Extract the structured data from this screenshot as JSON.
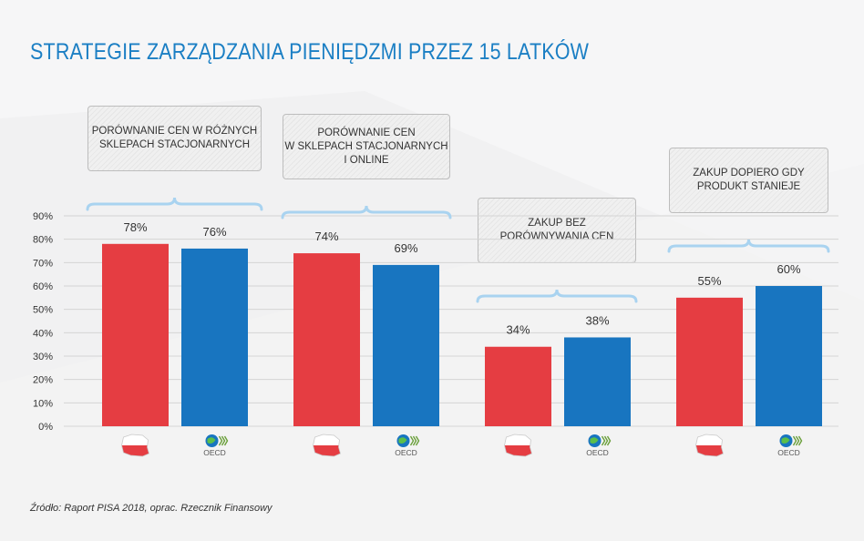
{
  "title": "STRATEGIE ZARZĄDZANIA PIENIĘDZMI PRZEZ 15 LATKÓW",
  "source": "Źródło: Raport PISA 2018, oprac. Rzecznik Finansowy",
  "colors": {
    "poland": "#e53d42",
    "oecd": "#1875c0",
    "title": "#1b7fc4",
    "bracket": "#a9d3f0",
    "grid": "#d4d4d4"
  },
  "legend_icons": {
    "poland": "poland-flag-map-icon",
    "oecd": "oecd-logo-icon",
    "oecd_label": "OECD"
  },
  "chart_data": {
    "type": "bar",
    "categories": [
      "PORÓWNANIE CEN W RÓŻNYCH\nSKLEPACH STACJONARNYCH",
      "PORÓWNANIE CEN\nW SKLEPACH STACJONARNYCH\nI ONLINE",
      "ZAKUP BEZ\nPORÓWNYWANIA CEN",
      "ZAKUP DOPIERO GDY\nPRODUKT STANIEJE"
    ],
    "series": [
      {
        "key": "poland",
        "values": [
          78,
          74,
          34,
          55
        ]
      },
      {
        "key": "oecd",
        "values": [
          76,
          69,
          38,
          60
        ]
      }
    ],
    "value_labels": [
      [
        "78%",
        "74%",
        "34%",
        "55%"
      ],
      [
        "76%",
        "69%",
        "38%",
        "60%"
      ]
    ],
    "yticks": [
      "0%",
      "10%",
      "20%",
      "30%",
      "40%",
      "50%",
      "60%",
      "70%",
      "80%",
      "90%"
    ],
    "ylim": [
      0,
      90
    ],
    "grid": true
  }
}
